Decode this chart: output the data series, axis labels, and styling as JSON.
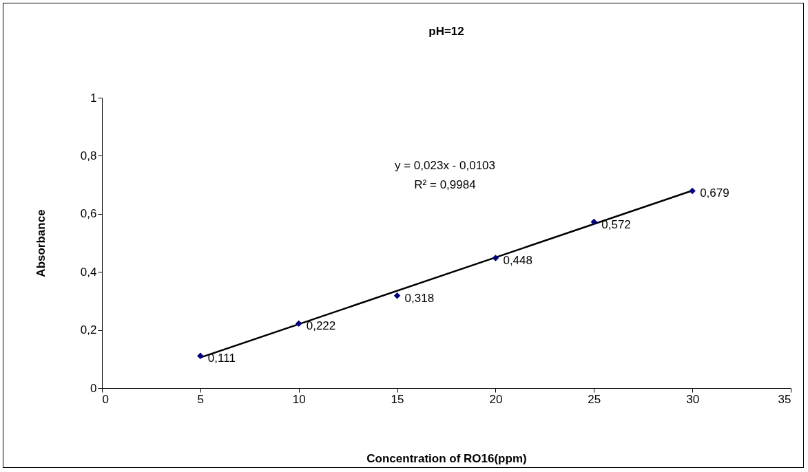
{
  "chart_data": {
    "type": "scatter",
    "title": "pH=12",
    "xlabel": "Concentration of RO16(ppm)",
    "ylabel": "Absorbance",
    "x": [
      5,
      10,
      15,
      20,
      25,
      30
    ],
    "series": [
      {
        "marker": "diamond",
        "color": "#000080",
        "values": [
          0.111,
          0.222,
          0.318,
          0.448,
          0.572,
          0.679
        ],
        "value_labels": [
          "0,111",
          "0,222",
          "0,318",
          "0,448",
          "0,572",
          "0,679"
        ]
      },
      {
        "type": "line",
        "marker": "none",
        "color": "#000000",
        "x": [
          5,
          30
        ],
        "values": [
          0.105,
          0.68
        ]
      }
    ],
    "grid": false,
    "xlim": [
      0,
      35
    ],
    "xticks": [
      0,
      5,
      10,
      15,
      20,
      25,
      30,
      35
    ],
    "ylim": [
      0,
      1
    ],
    "yticks": [
      0,
      {
        "value": 0.2,
        "label": "0,2"
      },
      {
        "value": 0.4,
        "label": "0,4"
      },
      {
        "value": 0.6,
        "label": "0,6"
      },
      {
        "value": 0.8,
        "label": "0,8"
      },
      1
    ],
    "annotations": [
      "y = 0,023x - 0,0103",
      "R² = 0,9984"
    ]
  }
}
